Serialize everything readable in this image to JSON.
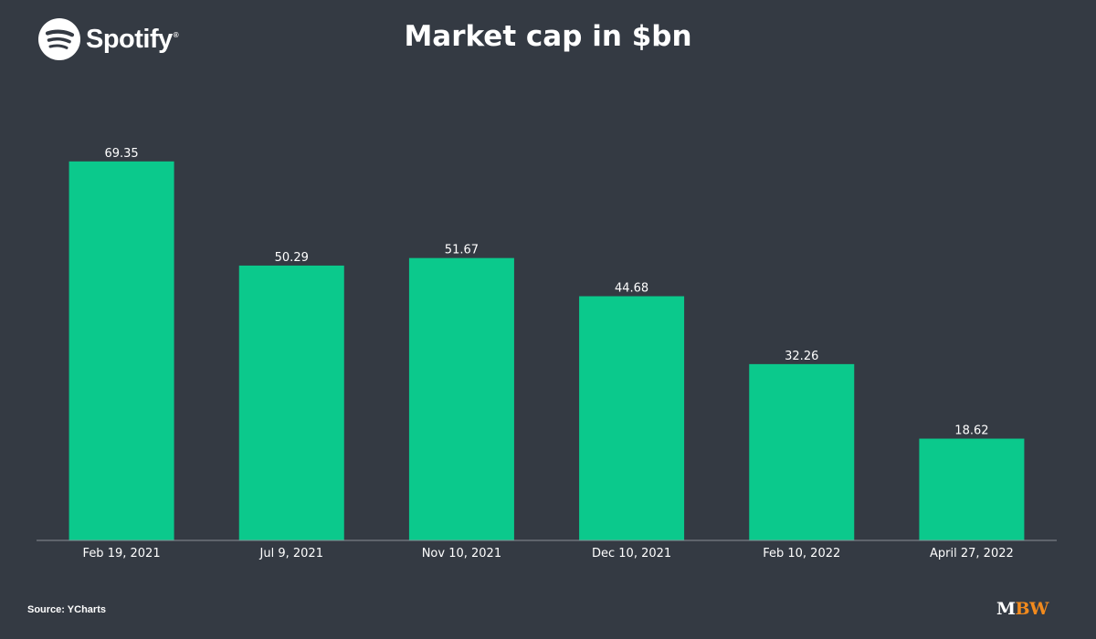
{
  "brand": {
    "name": "Spotify",
    "icon": "spotify-icon"
  },
  "footer": {
    "source": "Source: YCharts",
    "logo_m": "M",
    "logo_bw": "BW"
  },
  "colors": {
    "background": "#343a43",
    "bar": "#0bc98c",
    "axis": "#8a8f96",
    "accent": "#f28a1d"
  },
  "chart_data": {
    "type": "bar",
    "title": "Market cap in $bn",
    "xlabel": "",
    "ylabel": "",
    "categories": [
      "Feb 19, 2021",
      "Jul 9, 2021",
      "Nov 10, 2021",
      "Dec 10, 2021",
      "Feb 10, 2022",
      "April 27, 2022"
    ],
    "values": [
      69.35,
      50.29,
      51.67,
      44.68,
      32.26,
      18.62
    ],
    "value_labels": [
      "69.35",
      "50.29",
      "51.67",
      "44.68",
      "32.26",
      "18.62"
    ],
    "ylim": [
      0,
      76
    ],
    "grid": false,
    "legend": "none"
  }
}
